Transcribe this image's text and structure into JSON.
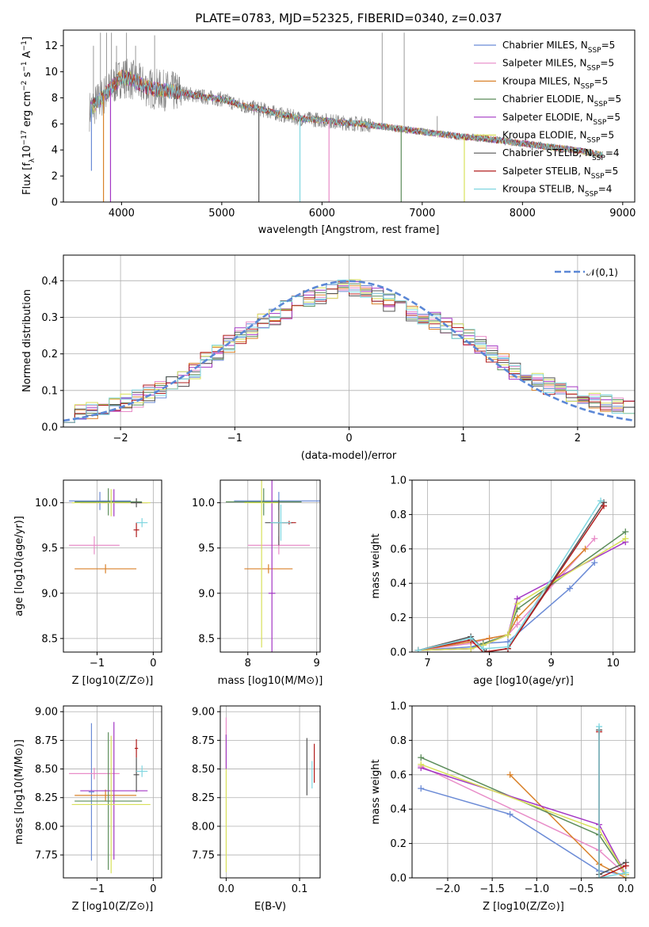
{
  "chart_data": [
    {
      "type": "line",
      "title": "PLATE=0783, MJD=52325, FIBERID=0340, z=0.037",
      "xlabel": "wavelength [Angstrom, rest frame]",
      "ylabel": "Flux [f_λ10^-17 erg cm^-2 s^-1 A^-1]",
      "xlim": [
        3420,
        9120
      ],
      "ylim": [
        0,
        13.2
      ],
      "xticks": [
        "4000",
        "5000",
        "6000",
        "7000",
        "8000",
        "9000"
      ],
      "yticks": [
        "0",
        "2",
        "4",
        "6",
        "8",
        "10",
        "12"
      ],
      "grid": false,
      "legend_position": "top-right",
      "series": [
        {
          "name": "Chabrier MILES, N_SSP=5",
          "color": "#6b8bd6"
        },
        {
          "name": "Salpeter MILES, N_SSP=5",
          "color": "#e88cc8"
        },
        {
          "name": "Kroupa MILES, N_SSP=5",
          "color": "#d9822b"
        },
        {
          "name": "Chabrier ELODIE, N_SSP=5",
          "color": "#5b8c5a"
        },
        {
          "name": "Salpeter ELODIE, N_SSP=5",
          "color": "#a336c4"
        },
        {
          "name": "Kroupa ELODIE, N_SSP=5",
          "color": "#d8e05a"
        },
        {
          "name": "Chabrier STELIB, N_SSP=4",
          "color": "#555555"
        },
        {
          "name": "Salpeter STELIB, N_SSP=5",
          "color": "#b01c1c"
        },
        {
          "name": "Kroupa STELIB, N_SSP=4",
          "color": "#7fd6e0"
        }
      ],
      "observed_color": "#808080",
      "continuum": {
        "x": [
          3680,
          3800,
          3900,
          4000,
          4100,
          4200,
          4300,
          4400,
          4600,
          4800,
          5000,
          5200,
          5400,
          5600,
          5800,
          6000,
          6200,
          6400,
          6600,
          6800,
          7000,
          7200,
          7400,
          7600,
          7800,
          8000,
          8200,
          8400,
          8600,
          8800
        ],
        "y": [
          7.0,
          8.0,
          8.8,
          9.6,
          9.4,
          9.0,
          8.7,
          8.6,
          8.4,
          8.1,
          7.9,
          7.4,
          7.1,
          6.7,
          6.4,
          6.3,
          6.1,
          6.0,
          5.8,
          5.6,
          5.4,
          5.2,
          5.0,
          4.9,
          4.7,
          4.5,
          4.3,
          4.1,
          3.9,
          3.6
        ]
      },
      "dips": [
        {
          "x": 3700,
          "y": 2.4
        },
        {
          "x": 3820,
          "y": 0
        },
        {
          "x": 3890,
          "y": 0
        },
        {
          "x": 5370,
          "y": 0
        },
        {
          "x": 5780,
          "y": 0
        },
        {
          "x": 6070,
          "y": 0
        },
        {
          "x": 6790,
          "y": 0
        },
        {
          "x": 7420,
          "y": 0
        }
      ],
      "spikes": [
        {
          "x": 3720,
          "y": 12.0
        },
        {
          "x": 3790,
          "y": 13.0
        },
        {
          "x": 3850,
          "y": 13.0
        },
        {
          "x": 3900,
          "y": 13.0
        },
        {
          "x": 3950,
          "y": 12.0
        },
        {
          "x": 4050,
          "y": 13.0
        },
        {
          "x": 4140,
          "y": 12.0
        },
        {
          "x": 4330,
          "y": 12.8
        },
        {
          "x": 6600,
          "y": 13.0
        },
        {
          "x": 6820,
          "y": 13.0
        },
        {
          "x": 7150,
          "y": 6.6
        }
      ]
    },
    {
      "type": "line",
      "xlabel": "(data-model)/error",
      "ylabel": "Normed distribution",
      "xlim": [
        -2.5,
        2.5
      ],
      "ylim": [
        0,
        0.47
      ],
      "xticks": [
        "−2",
        "−1",
        "0",
        "1",
        "2"
      ],
      "yticks": [
        "0.0",
        "0.1",
        "0.2",
        "0.3",
        "0.4"
      ],
      "grid": true,
      "legend": "𝒩(0,1)",
      "legend_position": "top-right",
      "reference_curve": {
        "name": "𝒩(0,1)",
        "mean": 0,
        "sigma": 1,
        "color": "#5b87d6",
        "style": "dashed"
      },
      "bin_width": 0.1,
      "histogram_envelope": {
        "x": [
          -2.5,
          -2.0,
          -1.5,
          -1.0,
          -0.5,
          0.0,
          0.5,
          1.0,
          1.5,
          2.0,
          2.5
        ],
        "y": [
          0.035,
          0.06,
          0.12,
          0.24,
          0.33,
          0.39,
          0.32,
          0.26,
          0.14,
          0.08,
          0.05
        ]
      },
      "series_colors": [
        "#6b8bd6",
        "#e88cc8",
        "#d9822b",
        "#5b8c5a",
        "#a336c4",
        "#d8e05a",
        "#555555",
        "#b01c1c",
        "#7fd6e0"
      ]
    },
    {
      "type": "scatter",
      "xlabel": "Z [log10(Z/Z⊙)]",
      "ylabel": "age [log10(age/yr)]",
      "xlim": [
        -1.6,
        0.15
      ],
      "ylim": [
        8.35,
        10.25
      ],
      "xticks": [
        "−1",
        "0"
      ],
      "yticks": [
        "8.5",
        "9.0",
        "9.5",
        "10.0"
      ],
      "grid": true,
      "points": [
        {
          "x": -0.95,
          "y": 10.02,
          "xerr": 0.55,
          "yerr": 0.1,
          "color": "#6b8bd6"
        },
        {
          "x": -1.05,
          "y": 9.53,
          "xerr": 0.45,
          "yerr": 0.1,
          "color": "#e88cc8"
        },
        {
          "x": -0.85,
          "y": 9.27,
          "xerr": 0.55,
          "yerr": 0.05,
          "color": "#d9822b"
        },
        {
          "x": -0.8,
          "y": 10.01,
          "xerr": 0.6,
          "yerr": 0.15,
          "color": "#5b8c5a"
        },
        {
          "x": -0.7,
          "y": 10.0,
          "xerr": 0.6,
          "yerr": 0.15,
          "color": "#a336c4"
        },
        {
          "x": -0.75,
          "y": 10.0,
          "xerr": 0.7,
          "yerr": 0.15,
          "color": "#d8e05a"
        },
        {
          "x": -0.3,
          "y": 10.0,
          "xerr": 0.1,
          "yerr": 0.05,
          "color": "#555555"
        },
        {
          "x": -0.3,
          "y": 9.7,
          "xerr": 0.05,
          "yerr": 0.08,
          "color": "#b01c1c"
        },
        {
          "x": -0.2,
          "y": 9.78,
          "xerr": 0.1,
          "yerr": 0.05,
          "color": "#7fd6e0"
        }
      ]
    },
    {
      "type": "scatter",
      "xlabel": "mass [log10(M/M⊙)]",
      "ylabel": "",
      "xlim": [
        7.6,
        9.05
      ],
      "ylim": [
        8.35,
        10.25
      ],
      "xticks": [
        "8",
        "9"
      ],
      "yticks": [
        "8.5",
        "9.0",
        "9.5",
        "10.0"
      ],
      "grid": true,
      "points": [
        {
          "x": 8.45,
          "y": 10.02,
          "xerr": 0.65,
          "yerr": 0.1,
          "color": "#6b8bd6"
        },
        {
          "x": 8.45,
          "y": 9.53,
          "xerr": 0.45,
          "yerr": 0.1,
          "color": "#e88cc8"
        },
        {
          "x": 8.3,
          "y": 9.27,
          "xerr": 0.35,
          "yerr": 0.05,
          "color": "#d9822b"
        },
        {
          "x": 8.23,
          "y": 10.01,
          "xerr": 0.55,
          "yerr": 0.15,
          "color": "#5b8c5a"
        },
        {
          "x": 8.35,
          "y": 9.0,
          "xerr": 0.05,
          "yerr": 1.5,
          "color": "#a336c4"
        },
        {
          "x": 8.2,
          "y": 10.0,
          "xerr": 0.25,
          "yerr": 1.6,
          "color": "#d8e05a"
        },
        {
          "x": 8.45,
          "y": 9.78,
          "xerr": 0.2,
          "yerr": 0.25,
          "color": "#555555"
        },
        {
          "x": 8.6,
          "y": 9.78,
          "xerr": 0.1,
          "yerr": 0.02,
          "color": "#b01c1c"
        },
        {
          "x": 8.48,
          "y": 9.78,
          "xerr": 0.15,
          "yerr": 0.2,
          "color": "#7fd6e0"
        }
      ]
    },
    {
      "type": "line",
      "xlabel": "age [log10(age/yr)]",
      "ylabel": "mass weight",
      "xlim": [
        6.75,
        10.35
      ],
      "ylim": [
        0,
        1.0
      ],
      "xticks": [
        "7",
        "8",
        "9",
        "10"
      ],
      "yticks": [
        "0.0",
        "0.2",
        "0.4",
        "0.6",
        "0.8",
        "1.0"
      ],
      "grid": true,
      "series": [
        {
          "color": "#6b8bd6",
          "x": [
            6.85,
            7.7,
            7.9,
            8.3,
            9.3,
            9.7
          ],
          "y": [
            0.01,
            0.03,
            0.05,
            0.06,
            0.37,
            0.52
          ]
        },
        {
          "color": "#e88cc8",
          "x": [
            6.85,
            7.7,
            8.0,
            8.3,
            8.45,
            9.7
          ],
          "y": [
            0.01,
            0.05,
            0.08,
            0.1,
            0.16,
            0.66
          ]
        },
        {
          "color": "#d9822b",
          "x": [
            6.85,
            7.7,
            8.0,
            8.3,
            8.45,
            9.55
          ],
          "y": [
            0.01,
            0.06,
            0.08,
            0.1,
            0.2,
            0.6
          ]
        },
        {
          "color": "#5b8c5a",
          "x": [
            6.85,
            7.7,
            7.9,
            8.3,
            8.45,
            10.2
          ],
          "y": [
            0.01,
            0.02,
            0.05,
            0.1,
            0.25,
            0.7
          ]
        },
        {
          "color": "#a336c4",
          "x": [
            6.85,
            7.7,
            7.9,
            8.3,
            8.45,
            10.2
          ],
          "y": [
            0.01,
            0.02,
            0.04,
            0.1,
            0.31,
            0.64
          ]
        },
        {
          "color": "#d8e05a",
          "x": [
            6.85,
            7.7,
            7.9,
            8.3,
            8.45,
            10.2
          ],
          "y": [
            0.01,
            0.02,
            0.04,
            0.1,
            0.28,
            0.66
          ]
        },
        {
          "color": "#555555",
          "x": [
            6.85,
            7.7,
            7.95,
            8.3,
            9.85
          ],
          "y": [
            0.01,
            0.09,
            0.0,
            0.02,
            0.87
          ]
        },
        {
          "color": "#b01c1c",
          "x": [
            6.85,
            7.7,
            7.9,
            8.3,
            9.85
          ],
          "y": [
            0.01,
            0.07,
            0.0,
            0.02,
            0.85
          ]
        },
        {
          "color": "#7fd6e0",
          "x": [
            6.85,
            7.7,
            7.9,
            8.3,
            9.8
          ],
          "y": [
            0.01,
            0.08,
            0.02,
            0.03,
            0.88
          ]
        }
      ]
    },
    {
      "type": "scatter",
      "xlabel": "Z [log10(Z/Z⊙)]",
      "ylabel": "mass [log10(M/M⊙)]",
      "xlim": [
        -1.6,
        0.15
      ],
      "ylim": [
        7.55,
        9.05
      ],
      "xticks": [
        "−1",
        "0"
      ],
      "yticks": [
        "7.75",
        "8.00",
        "8.25",
        "8.50",
        "8.75",
        "9.00"
      ],
      "grid": true,
      "points": [
        {
          "x": -1.1,
          "y": 8.3,
          "xerr": 0.05,
          "yerr": 0.6,
          "color": "#6b8bd6"
        },
        {
          "x": -1.05,
          "y": 8.46,
          "xerr": 0.45,
          "yerr": 0.05,
          "color": "#e88cc8"
        },
        {
          "x": -0.85,
          "y": 8.27,
          "xerr": 0.55,
          "yerr": 0.05,
          "color": "#d9822b"
        },
        {
          "x": -0.8,
          "y": 8.22,
          "xerr": 0.6,
          "yerr": 0.6,
          "color": "#5b8c5a"
        },
        {
          "x": -0.7,
          "y": 8.31,
          "xerr": 0.6,
          "yerr": 0.6,
          "color": "#a336c4"
        },
        {
          "x": -0.75,
          "y": 8.19,
          "xerr": 0.7,
          "yerr": 0.6,
          "color": "#d8e05a"
        },
        {
          "x": -0.3,
          "y": 8.45,
          "xerr": 0.05,
          "yerr": 0.15,
          "color": "#555555"
        },
        {
          "x": -0.3,
          "y": 8.68,
          "xerr": 0.03,
          "yerr": 0.08,
          "color": "#b01c1c"
        },
        {
          "x": -0.2,
          "y": 8.48,
          "xerr": 0.1,
          "yerr": 0.05,
          "color": "#7fd6e0"
        }
      ]
    },
    {
      "type": "scatter",
      "xlabel": "E(B-V)",
      "ylabel": "",
      "xlim": [
        -0.008,
        0.128
      ],
      "ylim": [
        7.55,
        9.05
      ],
      "xticks": [
        "0.0",
        "0.1"
      ],
      "yticks": [
        "7.75",
        "8.00",
        "8.25",
        "8.50",
        "8.75",
        "9.00"
      ],
      "grid": true,
      "points": [
        {
          "x": 0.0,
          "y": 8.85,
          "xerr": 0.0,
          "yerr": 0.1,
          "color": "#e88cc8"
        },
        {
          "x": 0.0,
          "y": 8.2,
          "xerr": 0.0,
          "yerr": 0.6,
          "color": "#d8e05a"
        },
        {
          "x": 0.0,
          "y": 8.65,
          "xerr": 0.0,
          "yerr": 0.15,
          "color": "#a336c4"
        },
        {
          "x": 0.11,
          "y": 8.52,
          "xerr": 0.0,
          "yerr": 0.25,
          "color": "#555555"
        },
        {
          "x": 0.12,
          "y": 8.55,
          "xerr": 0.0,
          "yerr": 0.17,
          "color": "#b01c1c"
        },
        {
          "x": 0.117,
          "y": 8.45,
          "xerr": 0.0,
          "yerr": 0.12,
          "color": "#7fd6e0"
        }
      ]
    },
    {
      "type": "line",
      "xlabel": "Z [log10(Z/Z⊙)]",
      "ylabel": "mass weight",
      "xlim": [
        -2.4,
        0.1
      ],
      "ylim": [
        0,
        1.0
      ],
      "xticks": [
        "−2.0",
        "−1.5",
        "−1.0",
        "−0.5",
        "0.0"
      ],
      "yticks": [
        "0.0",
        "0.2",
        "0.4",
        "0.6",
        "0.8",
        "1.0"
      ],
      "grid": true,
      "series": [
        {
          "color": "#6b8bd6",
          "x": [
            -2.3,
            -1.3,
            -0.3,
            0.0
          ],
          "y": [
            0.52,
            0.37,
            0.04,
            0.02
          ]
        },
        {
          "color": "#e88cc8",
          "x": [
            -2.3,
            -0.3,
            0.0
          ],
          "y": [
            0.65,
            0.16,
            0.02
          ]
        },
        {
          "color": "#d9822b",
          "x": [
            -1.3,
            -0.3,
            0.0
          ],
          "y": [
            0.6,
            0.08,
            0.0
          ]
        },
        {
          "color": "#5b8c5a",
          "x": [
            -2.3,
            -0.3,
            0.0
          ],
          "y": [
            0.7,
            0.25,
            0.02
          ]
        },
        {
          "color": "#a336c4",
          "x": [
            -2.3,
            -0.3,
            0.0
          ],
          "y": [
            0.64,
            0.31,
            0.02
          ]
        },
        {
          "color": "#d8e05a",
          "x": [
            -2.3,
            -0.3,
            0.0
          ],
          "y": [
            0.66,
            0.28,
            0.02
          ]
        },
        {
          "color": "#555555",
          "x": [
            -0.3,
            -0.3,
            0.0
          ],
          "y": [
            0.86,
            0.02,
            0.09
          ]
        },
        {
          "color": "#b01c1c",
          "x": [
            -0.3,
            -0.3,
            0.0
          ],
          "y": [
            0.85,
            0.0,
            0.07
          ]
        },
        {
          "color": "#7fd6e0",
          "x": [
            -0.3,
            -0.3,
            0.0
          ],
          "y": [
            0.88,
            0.0,
            0.03
          ]
        }
      ]
    }
  ]
}
